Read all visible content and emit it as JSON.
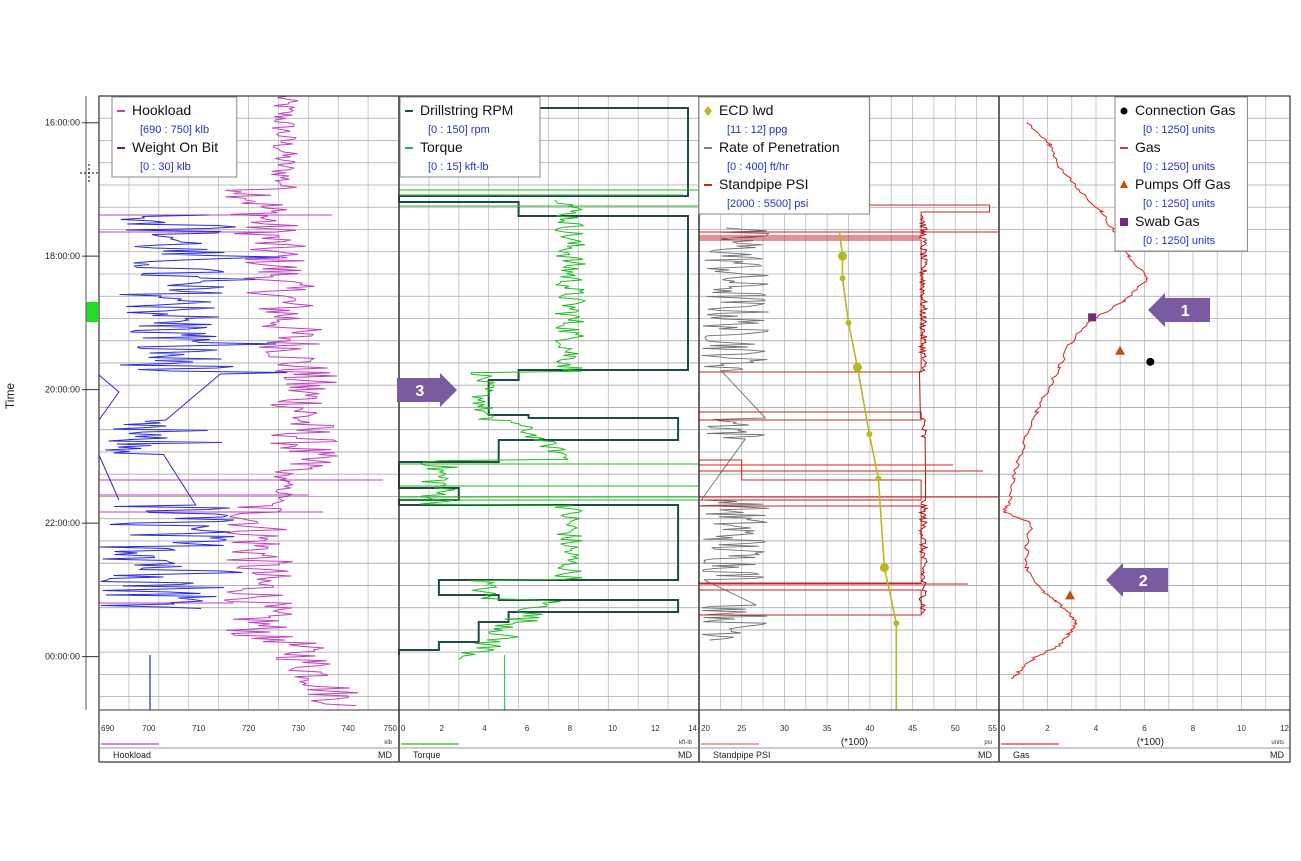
{
  "y_axis": {
    "label": "Time",
    "ticks": [
      "16:00:00",
      "18:00:00",
      "20:00:00",
      "22:00:00",
      "00:00:00"
    ]
  },
  "tracks": [
    {
      "id": "track1",
      "legend": [
        {
          "name": "Hookload",
          "range": "[690 : 750] klb",
          "color": "#c040c0",
          "marker": "line"
        },
        {
          "name": "Weight On Bit",
          "range": "[0 : 30] klb",
          "color": "#2a2ad8",
          "marker": "line"
        }
      ],
      "x_ticks": [
        "690",
        "700",
        "710",
        "720",
        "730",
        "740",
        "750"
      ],
      "unit": "klb",
      "footer_curve": "Hookload",
      "footer_color": "#c040c0",
      "footer_md": "MD"
    },
    {
      "id": "track2",
      "legend": [
        {
          "name": "Drillstring RPM",
          "range": "[0 : 150] rpm",
          "color": "#1e4a4a",
          "marker": "line"
        },
        {
          "name": "Torque",
          "range": "[0 : 15] kft-lb",
          "color": "#22bb22",
          "marker": "line"
        }
      ],
      "x_ticks": [
        "0",
        "2",
        "4",
        "6",
        "8",
        "10",
        "12",
        "14"
      ],
      "unit": "kft-lb",
      "footer_curve": "Torque",
      "footer_color": "#22bb22",
      "footer_md": "MD"
    },
    {
      "id": "track3",
      "legend": [
        {
          "name": "ECD lwd",
          "range": "[11 : 12] ppg",
          "color": "#b8b820",
          "marker": "diamond"
        },
        {
          "name": "Rate of Penetration",
          "range": "[0 : 400] ft/hr",
          "color": "#808080",
          "marker": "line"
        },
        {
          "name": "Standpipe PSI",
          "range": "[2000 : 5500] psi",
          "color": "#cc2222",
          "marker": "line"
        }
      ],
      "x_ticks": [
        "20",
        "25",
        "30",
        "35",
        "40",
        "45",
        "50",
        "55"
      ],
      "unit": "psi",
      "scale_note": "(*100)",
      "footer_curve": "Standpipe PSI",
      "footer_color": "#e07070",
      "footer_md": "MD"
    },
    {
      "id": "track4",
      "legend": [
        {
          "name": "Connection Gas",
          "range": "[0 : 1250] units",
          "color": "#000000",
          "marker": "circle"
        },
        {
          "name": "Gas",
          "range": "[0 : 1250] units",
          "color": "#e03030",
          "marker": "line"
        },
        {
          "name": "Pumps Off Gas",
          "range": "[0 : 1250] units",
          "color": "#c05010",
          "marker": "triangle"
        },
        {
          "name": "Swab Gas",
          "range": "[0 : 1250] units",
          "color": "#702a80",
          "marker": "square"
        }
      ],
      "x_ticks": [
        "0",
        "2",
        "4",
        "6",
        "8",
        "10",
        "12"
      ],
      "unit": "units",
      "scale_note": "(*100)",
      "footer_curve": "Gas",
      "footer_color": "#e03030",
      "footer_md": "MD"
    }
  ],
  "annotations": [
    {
      "label": "1",
      "direction": "left"
    },
    {
      "label": "2",
      "direction": "left"
    },
    {
      "label": "3",
      "direction": "right"
    }
  ],
  "colors": {
    "hookload": "#c040c0",
    "wob": "#2a2ad8",
    "rpm": "#1e4a4a",
    "torque": "#22bb22",
    "ecd": "#b8b820",
    "rop": "#707070",
    "spp": "#cc2222",
    "gas": "#e03030",
    "arrow": "#7a5aa0",
    "grid": "#000000"
  },
  "chart_data": {
    "type": "line",
    "y_range": [
      "15:36",
      "00:48"
    ],
    "series": [
      {
        "name": "ECD lwd",
        "unit": "ppg",
        "x": [
          11.48,
          11.48,
          11.5,
          11.53,
          11.57,
          11.6,
          11.62,
          11.66
        ],
        "y": [
          "18:00",
          "18:20",
          "19:00",
          "19:40",
          "20:40",
          "21:20",
          "22:40",
          "23:30"
        ]
      },
      {
        "name": "Gas",
        "unit": "units",
        "x": [
          120,
          220,
          260,
          340,
          440,
          500,
          560,
          640,
          540,
          380,
          300,
          260,
          210,
          160,
          120,
          90,
          60,
          50,
          20,
          140,
          120,
          120,
          180,
          240,
          300,
          330,
          300,
          260,
          160,
          100,
          60
        ],
        "y": [
          "16:00",
          "16:20",
          "16:40",
          "17:00",
          "17:20",
          "17:40",
          "18:00",
          "18:20",
          "18:40",
          "19:00",
          "19:20",
          "19:40",
          "20:00",
          "20:20",
          "20:40",
          "21:00",
          "21:20",
          "21:40",
          "21:50",
          "22:00",
          "22:20",
          "22:40",
          "23:00",
          "23:10",
          "23:20",
          "23:30",
          "23:40",
          "23:50",
          "00:00",
          "00:10",
          "00:20"
        ]
      },
      {
        "name": "Connection Gas",
        "unit": "units",
        "x": [
          650
        ],
        "y": [
          "19:35"
        ]
      },
      {
        "name": "Pumps Off Gas",
        "unit": "units",
        "x": [
          520,
          305
        ],
        "y": [
          "19:25",
          "23:05"
        ]
      },
      {
        "name": "Swab Gas",
        "unit": "units",
        "x": [
          400
        ],
        "y": [
          "18:55"
        ]
      }
    ]
  }
}
